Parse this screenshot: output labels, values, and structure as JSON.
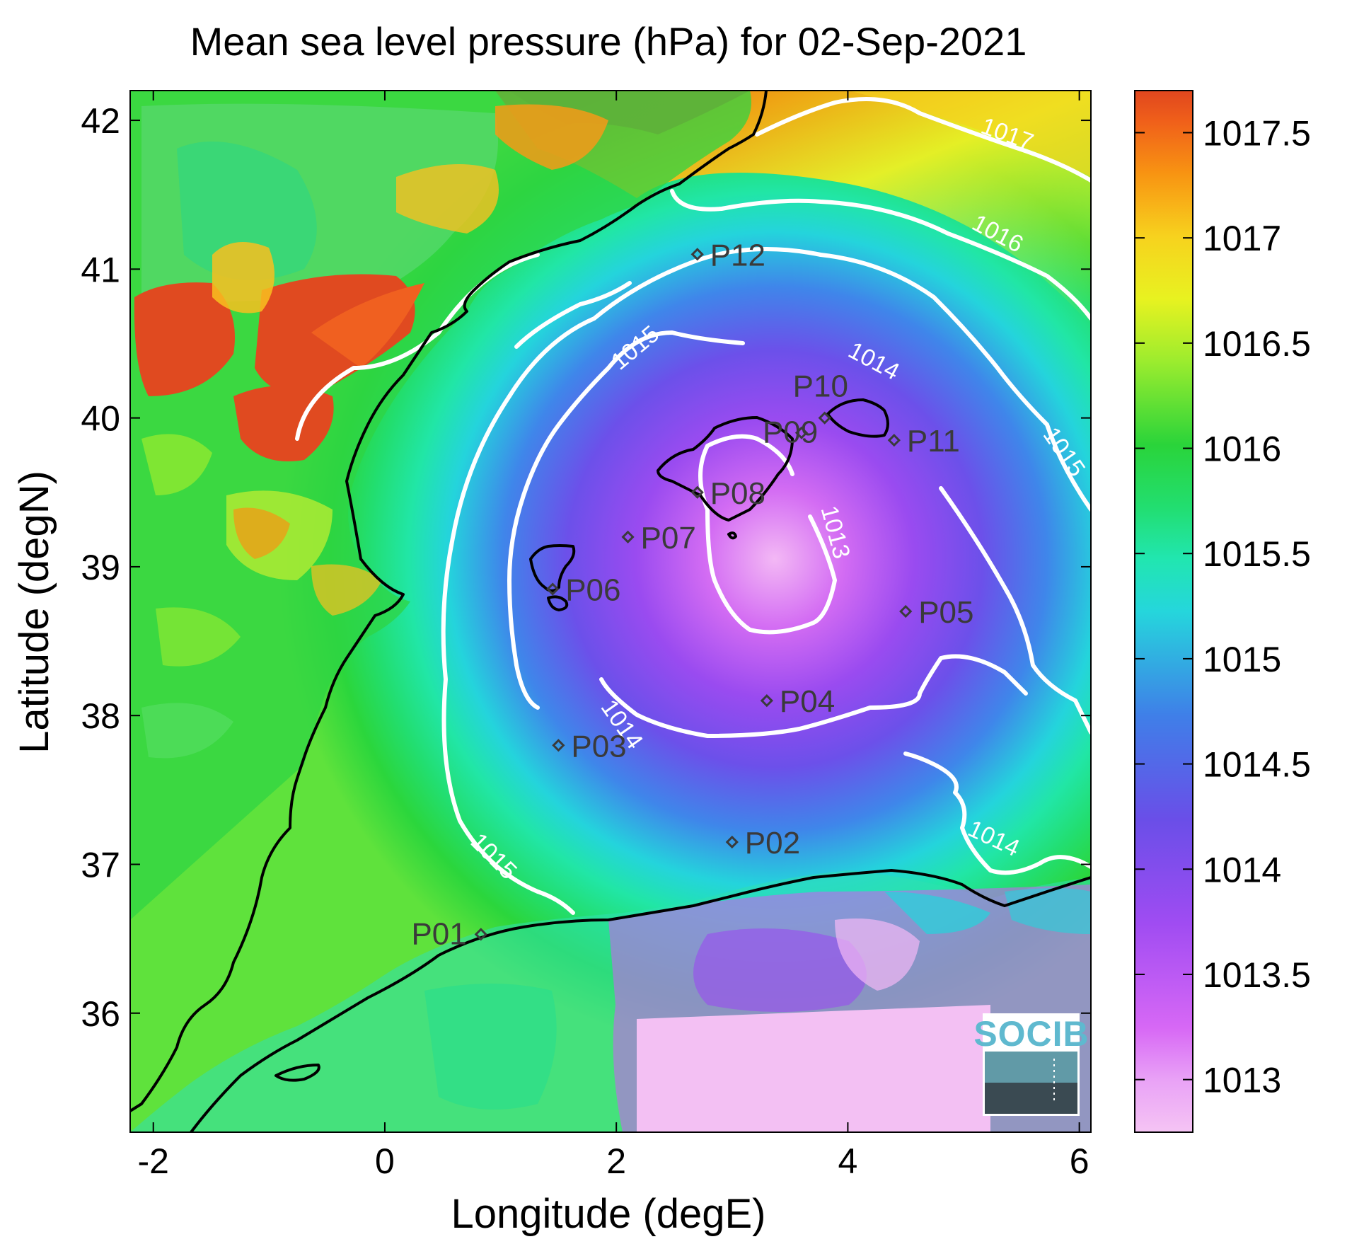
{
  "chart_data": {
    "type": "heatmap",
    "title": "Mean sea level pressure (hPa) for 02-Sep-2021",
    "xlabel": "Longitude (degE)",
    "ylabel": "Latitude (degN)",
    "xlim": [
      -2.2,
      6.1
    ],
    "ylim": [
      35.2,
      42.2
    ],
    "xticks": [
      -2,
      0,
      2,
      4,
      6
    ],
    "yticks": [
      36,
      37,
      38,
      39,
      40,
      41,
      42
    ],
    "colorbar": {
      "range": [
        1012.75,
        1017.7
      ],
      "ticks": [
        "1013",
        "1013.5",
        "1014",
        "1014.5",
        "1015",
        "1015.5",
        "1016",
        "1016.5",
        "1017",
        "1017.5"
      ],
      "colors": [
        "#f5c4f4",
        "#e480f5",
        "#b34ff5",
        "#7a4ae8",
        "#4b5de8",
        "#3aa0f0",
        "#22e0e0",
        "#21e6a0",
        "#22d440",
        "#5ce23a",
        "#c8f030",
        "#f6f020",
        "#f8c020",
        "#f88a10",
        "#e84a20"
      ]
    },
    "contours": [
      {
        "level": "1013",
        "label": "1013"
      },
      {
        "level": "1014",
        "label": "1014"
      },
      {
        "level": "1015",
        "label": "1015"
      },
      {
        "level": "1016",
        "label": "1016"
      },
      {
        "level": "1017",
        "label": "1017"
      }
    ],
    "stations": [
      {
        "name": "P01",
        "lon": 0.83,
        "lat": 36.53
      },
      {
        "name": "P02",
        "lon": 3.0,
        "lat": 37.15
      },
      {
        "name": "P03",
        "lon": 1.5,
        "lat": 37.8
      },
      {
        "name": "P04",
        "lon": 3.3,
        "lat": 38.1
      },
      {
        "name": "P05",
        "lon": 4.5,
        "lat": 38.7
      },
      {
        "name": "P06",
        "lon": 1.45,
        "lat": 38.85
      },
      {
        "name": "P07",
        "lon": 2.1,
        "lat": 39.2
      },
      {
        "name": "P08",
        "lon": 2.7,
        "lat": 39.5
      },
      {
        "name": "P09",
        "lon": 3.6,
        "lat": 39.9
      },
      {
        "name": "P10",
        "lon": 3.8,
        "lat": 40.0
      },
      {
        "name": "P11",
        "lon": 4.4,
        "lat": 39.85
      },
      {
        "name": "P12",
        "lon": 2.7,
        "lat": 41.1
      }
    ],
    "logo": "SOCIB",
    "colors": {
      "contour": "#ffffff",
      "coastline": "#000000",
      "station_marker": "#3a3a3a"
    }
  }
}
